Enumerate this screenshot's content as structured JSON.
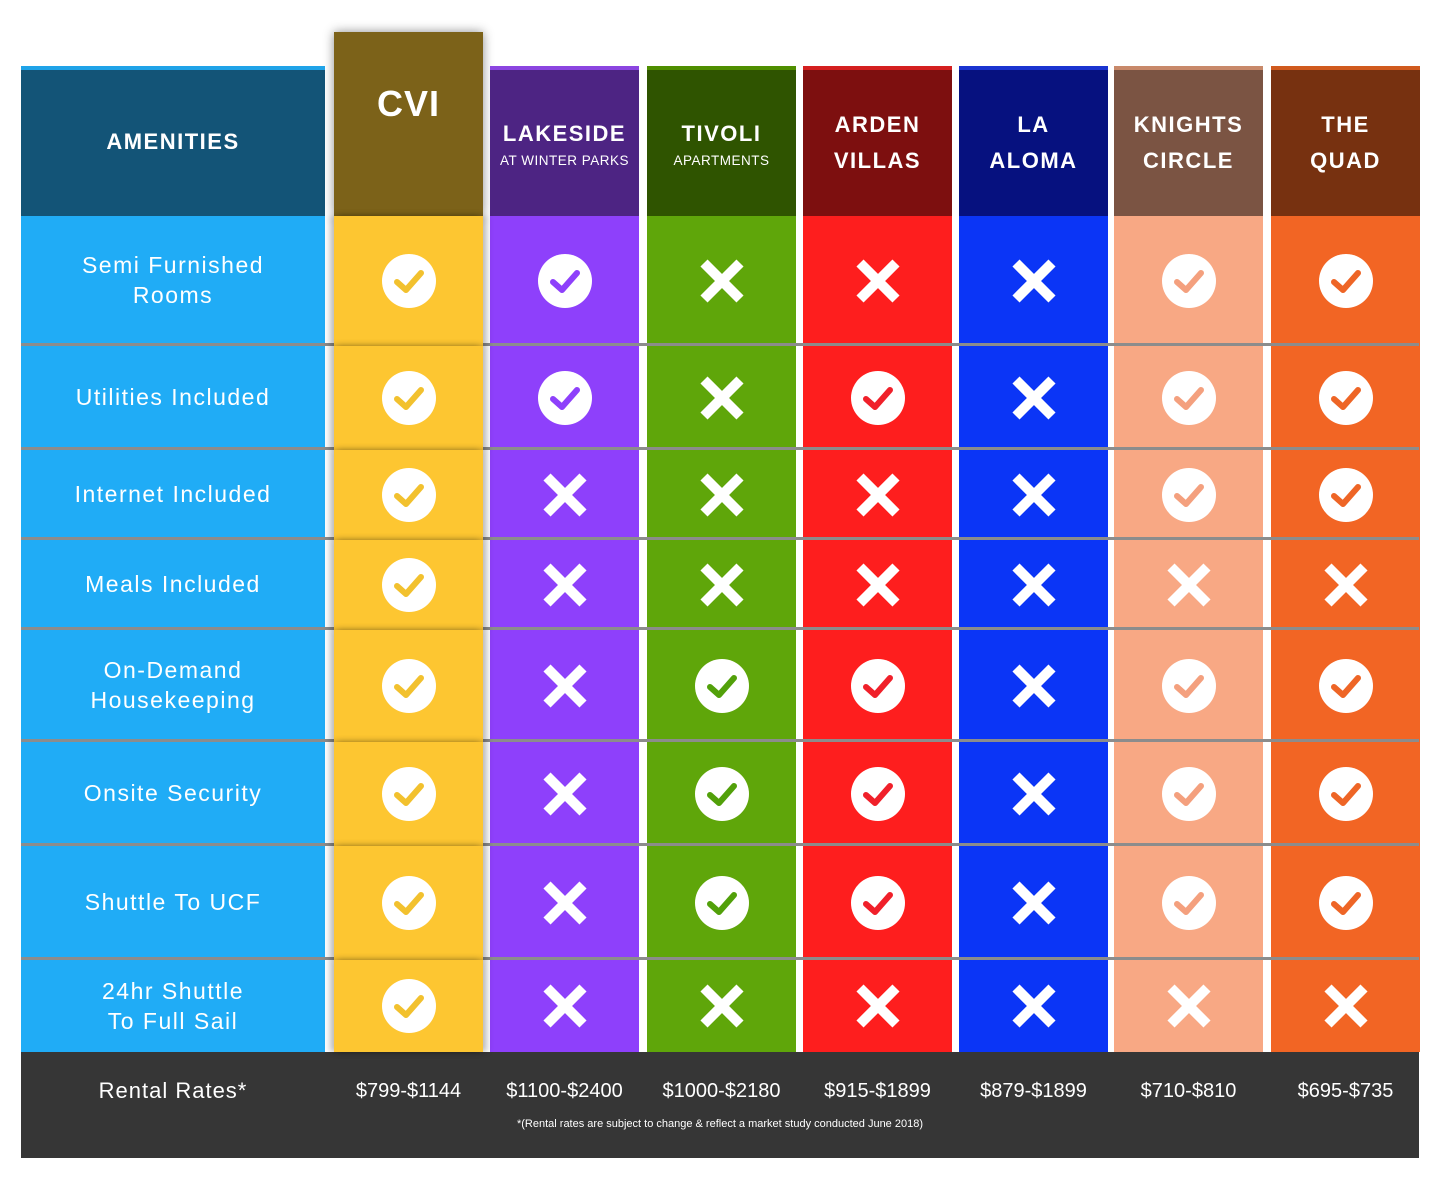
{
  "header": {
    "amenities_label": "AMENITIES",
    "columns": [
      {
        "line1": "CVI",
        "line2": "",
        "header_color": "#7C6219",
        "top_color": "#7C6219",
        "body_color": "#FDC631",
        "mark_color": "#F2C12E"
      },
      {
        "line1": "LAKESIDE",
        "line2": "AT WINTER PARKS",
        "header_color": "#4D2483",
        "top_color": "#8B45E0",
        "body_color": "#8E40FB",
        "mark_color": "#8E40FB"
      },
      {
        "line1": "TIVOLI",
        "line2": "APARTMENTS",
        "header_color": "#2F5400",
        "top_color": "#4F8E00",
        "body_color": "#5FA60A",
        "mark_color": "#52A00A"
      },
      {
        "line1": "ARDEN",
        "line2": "VILLAS",
        "header_color": "#7D0F0F",
        "top_color": "#D42020",
        "body_color": "#FE1E1E",
        "mark_color": "#F0202A"
      },
      {
        "line1": "LA",
        "line2": "ALOMA",
        "header_color": "#06117F",
        "top_color": "#1A34D0",
        "body_color": "#0B35F6",
        "mark_color": "#0B35F6"
      },
      {
        "line1": "KNIGHTS",
        "line2": "CIRCLE",
        "header_color": "#7B5443",
        "top_color": "#C8896A",
        "body_color": "#F8A884",
        "mark_color": "#F4A07E"
      },
      {
        "line1": "THE",
        "line2": "QUAD",
        "header_color": "#773110",
        "top_color": "#D05A1E",
        "body_color": "#F26524",
        "mark_color": "#EE6526"
      }
    ]
  },
  "rows": [
    {
      "label": [
        "Semi Furnished",
        "Rooms"
      ],
      "marks": [
        "check",
        "check",
        "x",
        "x",
        "x",
        "check",
        "check"
      ]
    },
    {
      "label": [
        "Utilities Included"
      ],
      "marks": [
        "check",
        "check",
        "x",
        "check",
        "x",
        "check",
        "check"
      ]
    },
    {
      "label": [
        "Internet Included"
      ],
      "marks": [
        "check",
        "x",
        "x",
        "x",
        "x",
        "check",
        "check"
      ]
    },
    {
      "label": [
        "Meals Included"
      ],
      "marks": [
        "check",
        "x",
        "x",
        "x",
        "x",
        "x",
        "x"
      ]
    },
    {
      "label": [
        "On-Demand",
        "Housekeeping"
      ],
      "marks": [
        "check",
        "x",
        "check",
        "check",
        "x",
        "check",
        "check"
      ]
    },
    {
      "label": [
        "Onsite Security"
      ],
      "marks": [
        "check",
        "x",
        "check",
        "check",
        "x",
        "check",
        "check"
      ]
    },
    {
      "label": [
        "Shuttle To UCF"
      ],
      "marks": [
        "check",
        "x",
        "check",
        "check",
        "x",
        "check",
        "check"
      ]
    },
    {
      "label": [
        "24hr Shuttle",
        "To Full Sail"
      ],
      "marks": [
        "check",
        "x",
        "x",
        "x",
        "x",
        "x",
        "x"
      ]
    }
  ],
  "footer": {
    "label": "Rental Rates*",
    "rates": [
      "$799-$1144",
      "$1100-$2400",
      "$1000-$2180",
      "$915-$1899",
      "$879-$1899",
      "$710-$810",
      "$695-$735"
    ],
    "note": "*(Rental rates are subject to change & reflect a market study conducted June 2018)"
  },
  "colors": {
    "amenities_header": "#135477",
    "amenities_body": "#20ACF6",
    "footer_bg": "#363636",
    "separator": "#8C8C8C"
  }
}
